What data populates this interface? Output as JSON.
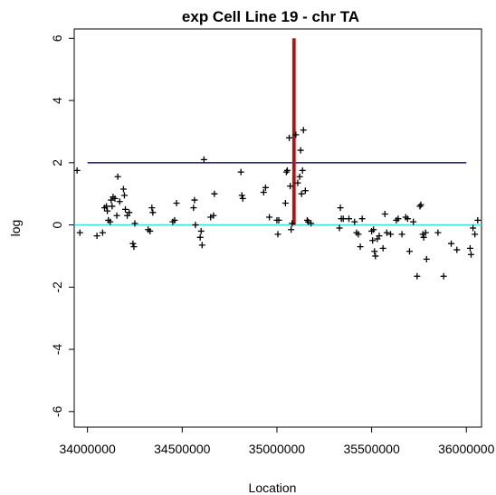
{
  "chart_data": {
    "type": "scatter",
    "title": "exp Cell Line 19 - chr TA",
    "xlabel": "Location",
    "ylabel": "log",
    "xlim": [
      33930000,
      36080000
    ],
    "ylim": [
      -6.5,
      6.3
    ],
    "x_ticks": [
      34000000,
      34500000,
      35000000,
      35500000,
      36000000
    ],
    "x_tick_labels": [
      "34000000",
      "34500000",
      "35000000",
      "35500000",
      "36000000"
    ],
    "y_ticks": [
      6,
      4,
      2,
      0,
      -2,
      -4,
      -6
    ],
    "y_tick_labels": [
      "6",
      "4",
      "2",
      "0",
      "-2",
      "-4",
      "-6"
    ],
    "grid": false,
    "legend": "none",
    "marker": "+",
    "colors": {
      "points": "#000000",
      "threshold_line": "#2b2b7a",
      "zero_line": "#40e0d0",
      "marker_line_outer": "#cc2222",
      "marker_line_inner": "#8b1a1a"
    },
    "reference_lines": [
      {
        "kind": "horizontal",
        "y": 2,
        "x_from": 34000000,
        "x_to": 36000000,
        "color": "#2b2b7a"
      },
      {
        "kind": "horizontal",
        "y": 0,
        "x_from": 33930000,
        "x_to": 36080000,
        "color": "#40e0d0"
      },
      {
        "kind": "vertical",
        "x": 35085000,
        "y_from": 0,
        "y_to": 6,
        "color": "#cc2222"
      },
      {
        "kind": "vertical",
        "x": 35095000,
        "y_from": 0,
        "y_to": 6,
        "color": "#cc2222"
      },
      {
        "kind": "vertical",
        "x": 35090000,
        "y_from": 0,
        "y_to": 6,
        "color": "#8b1a1a"
      }
    ],
    "points": [
      [
        33945000,
        1.75
      ],
      [
        33960000,
        -0.25
      ],
      [
        34050000,
        -0.35
      ],
      [
        34080000,
        -0.25
      ],
      [
        34090000,
        0.55
      ],
      [
        34100000,
        0.6
      ],
      [
        34105000,
        0.45
      ],
      [
        34110000,
        0.15
      ],
      [
        34120000,
        0.1
      ],
      [
        34125000,
        0.8
      ],
      [
        34130000,
        0.6
      ],
      [
        34135000,
        0.9
      ],
      [
        34145000,
        0.85
      ],
      [
        34155000,
        0.3
      ],
      [
        34160000,
        1.55
      ],
      [
        34170000,
        0.75
      ],
      [
        34190000,
        1.15
      ],
      [
        34195000,
        0.95
      ],
      [
        34200000,
        0.5
      ],
      [
        34210000,
        0.3
      ],
      [
        34220000,
        0.4
      ],
      [
        34240000,
        -0.6
      ],
      [
        34245000,
        -0.7
      ],
      [
        34250000,
        0.05
      ],
      [
        34320000,
        -0.15
      ],
      [
        34330000,
        -0.2
      ],
      [
        34340000,
        0.55
      ],
      [
        34345000,
        0.4
      ],
      [
        34450000,
        0.1
      ],
      [
        34460000,
        0.15
      ],
      [
        34470000,
        0.7
      ],
      [
        34560000,
        0.55
      ],
      [
        34565000,
        0.8
      ],
      [
        34570000,
        0.0
      ],
      [
        34595000,
        -0.4
      ],
      [
        34600000,
        -0.2
      ],
      [
        34605000,
        -0.65
      ],
      [
        34615000,
        2.1
      ],
      [
        34650000,
        0.25
      ],
      [
        34665000,
        0.3
      ],
      [
        34670000,
        1.0
      ],
      [
        34810000,
        1.7
      ],
      [
        34815000,
        0.95
      ],
      [
        34820000,
        0.85
      ],
      [
        34930000,
        1.05
      ],
      [
        34940000,
        1.2
      ],
      [
        34960000,
        0.25
      ],
      [
        35000000,
        0.15
      ],
      [
        35005000,
        -0.3
      ],
      [
        35010000,
        0.15
      ],
      [
        35045000,
        0.7
      ],
      [
        35050000,
        1.7
      ],
      [
        35055000,
        1.75
      ],
      [
        35065000,
        2.8
      ],
      [
        35070000,
        1.25
      ],
      [
        35075000,
        -0.15
      ],
      [
        35080000,
        0.05
      ],
      [
        35100000,
        2.9
      ],
      [
        35110000,
        1.35
      ],
      [
        35120000,
        1.55
      ],
      [
        35125000,
        2.4
      ],
      [
        35130000,
        1.0
      ],
      [
        35135000,
        1.75
      ],
      [
        35140000,
        3.05
      ],
      [
        35150000,
        1.1
      ],
      [
        35160000,
        0.15
      ],
      [
        35165000,
        0.1
      ],
      [
        35180000,
        0.05
      ],
      [
        35330000,
        -0.1
      ],
      [
        35335000,
        0.55
      ],
      [
        35340000,
        0.2
      ],
      [
        35350000,
        0.2
      ],
      [
        35380000,
        0.2
      ],
      [
        35410000,
        0.1
      ],
      [
        35420000,
        -0.25
      ],
      [
        35430000,
        -0.3
      ],
      [
        35440000,
        -0.7
      ],
      [
        35450000,
        0.2
      ],
      [
        35500000,
        -0.2
      ],
      [
        35505000,
        -0.5
      ],
      [
        35510000,
        -0.15
      ],
      [
        35515000,
        -0.85
      ],
      [
        35520000,
        -1.0
      ],
      [
        35530000,
        -0.45
      ],
      [
        35540000,
        -0.35
      ],
      [
        35560000,
        -0.75
      ],
      [
        35570000,
        0.35
      ],
      [
        35580000,
        -0.25
      ],
      [
        35600000,
        -0.3
      ],
      [
        35630000,
        0.15
      ],
      [
        35640000,
        0.2
      ],
      [
        35660000,
        -0.3
      ],
      [
        35680000,
        0.25
      ],
      [
        35690000,
        0.2
      ],
      [
        35700000,
        -0.85
      ],
      [
        35720000,
        0.1
      ],
      [
        35740000,
        -1.65
      ],
      [
        35755000,
        0.6
      ],
      [
        35760000,
        0.65
      ],
      [
        35770000,
        -0.3
      ],
      [
        35775000,
        -0.4
      ],
      [
        35785000,
        -0.25
      ],
      [
        35790000,
        -1.1
      ],
      [
        35850000,
        -0.25
      ],
      [
        35880000,
        -1.65
      ],
      [
        35920000,
        -0.6
      ],
      [
        35950000,
        -0.8
      ],
      [
        36020000,
        -0.75
      ],
      [
        36025000,
        -0.95
      ],
      [
        36035000,
        -0.1
      ],
      [
        36045000,
        -0.3
      ],
      [
        36060000,
        0.15
      ]
    ]
  }
}
